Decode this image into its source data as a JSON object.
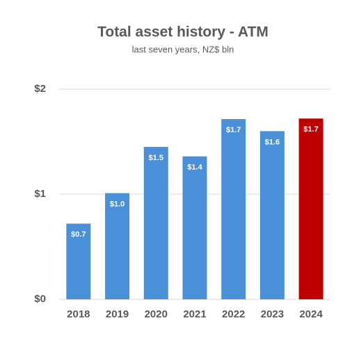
{
  "chart_data": {
    "type": "bar",
    "title": "Total asset history - ATM",
    "subtitle": "last seven years, NZ$ bln",
    "categories": [
      "2018",
      "2019",
      "2020",
      "2021",
      "2022",
      "2023",
      "2024"
    ],
    "values": [
      0.72,
      1.01,
      1.45,
      1.36,
      1.715,
      1.6,
      1.72
    ],
    "value_labels": [
      "$0.7",
      "$1.0",
      "$1.5",
      "$1.4",
      "$1.7",
      "$1.6",
      "$1.7"
    ],
    "colors": [
      "#4a90d9",
      "#4a90d9",
      "#4a90d9",
      "#4a90d9",
      "#4a90d9",
      "#4a90d9",
      "#c00000"
    ],
    "ylim": [
      0,
      2
    ],
    "yticks": [
      {
        "value": 0,
        "label": "$0"
      },
      {
        "value": 1,
        "label": "$1"
      },
      {
        "value": 2,
        "label": "$2"
      }
    ],
    "grid": true
  }
}
